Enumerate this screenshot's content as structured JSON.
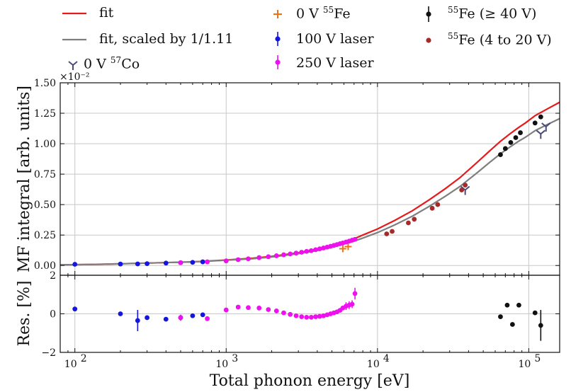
{
  "legend": {
    "fit": "fit",
    "fit_scaled": "fit, scaled by 1/1.11",
    "co57": "0 V",
    "co57_iso": "57",
    "co57_el": "Co",
    "fe55_0v": "0 V",
    "fe55_0v_iso": "55",
    "fe55_0v_el": "Fe",
    "laser100": "100 V laser",
    "laser250": "250 V laser",
    "fe55_high_iso": "55",
    "fe55_high": "Fe (≥ 40 V)",
    "fe55_low_iso": "55",
    "fe55_low": "Fe (4 to 20 V)"
  },
  "chart_data": [
    {
      "type": "scatter",
      "title": "",
      "xlabel": "Total phonon energy [eV]",
      "ylabel": "MF integral [arb. units]",
      "xscale": "log",
      "xlim": [
        80,
        160000
      ],
      "ylim": [
        -0.0008,
        0.015
      ],
      "y_offset_label": "×10⁻²",
      "xticks": [
        {
          "value": 100,
          "label": "10",
          "exp": "2"
        },
        {
          "value": 1000,
          "label": "10",
          "exp": "3"
        },
        {
          "value": 10000,
          "label": "10",
          "exp": "4"
        },
        {
          "value": 100000,
          "label": "10",
          "exp": "5"
        }
      ],
      "yticks": [
        {
          "value": 0.0,
          "label": "0.00"
        },
        {
          "value": 0.0025,
          "label": "0.25"
        },
        {
          "value": 0.005,
          "label": "0.50"
        },
        {
          "value": 0.0075,
          "label": "0.75"
        },
        {
          "value": 0.01,
          "label": "1.00"
        },
        {
          "value": 0.0125,
          "label": "1.25"
        },
        {
          "value": 0.015,
          "label": "1.50"
        }
      ],
      "grid": true,
      "curves": [
        {
          "name": "fit",
          "color": "#e41a1c",
          "x": [
            80,
            150,
            300,
            600,
            1000,
            1500,
            2000,
            3000,
            4000,
            5000,
            6000,
            7000,
            8000,
            10000,
            13000,
            17000,
            22000,
            28000,
            35000,
            45000,
            55000,
            65000,
            75000,
            85000,
            95000,
            110000,
            130000,
            160000
          ],
          "y": [
            5e-05,
            0.0001,
            0.0002,
            0.0003,
            0.00045,
            0.0006,
            0.00075,
            0.00105,
            0.00135,
            0.00165,
            0.00195,
            0.0022,
            0.0025,
            0.003,
            0.0037,
            0.0045,
            0.0054,
            0.0063,
            0.0072,
            0.0084,
            0.0094,
            0.0102,
            0.0108,
            0.0113,
            0.0117,
            0.0123,
            0.0128,
            0.0134
          ]
        },
        {
          "name": "fit, scaled by 1/1.11",
          "color": "#7f7f7f",
          "x": [
            80,
            150,
            300,
            600,
            1000,
            1500,
            2000,
            3000,
            4000,
            5000,
            6000,
            7000,
            8000,
            10000,
            13000,
            17000,
            22000,
            28000,
            35000,
            45000,
            55000,
            65000,
            75000,
            85000,
            95000,
            110000,
            130000,
            160000
          ],
          "y": [
            5e-05,
            0.0001,
            0.0002,
            0.0003,
            0.00043,
            0.00056,
            0.0007,
            0.00097,
            0.00123,
            0.0015,
            0.00176,
            0.002,
            0.00225,
            0.0027,
            0.00333,
            0.00405,
            0.00486,
            0.00567,
            0.00648,
            0.00756,
            0.00846,
            0.00918,
            0.00972,
            0.01017,
            0.01053,
            0.01107,
            0.01152,
            0.01206
          ]
        }
      ],
      "series": [
        {
          "name": "0 V 55Fe",
          "color": "#f0701a",
          "marker": "plus",
          "x": [
            5900,
            6400
          ],
          "y": [
            0.00138,
            0.00155
          ]
        },
        {
          "name": "100 V laser",
          "color": "#1515e0",
          "marker": "dot",
          "x": [
            100,
            200,
            260,
            300,
            400,
            500,
            600,
            700
          ],
          "y": [
            0.0001,
            0.00012,
            0.00013,
            0.00015,
            0.0002,
            0.00023,
            0.00026,
            0.0003
          ]
        },
        {
          "name": "250 V laser",
          "color": "#ee10ee",
          "marker": "dot",
          "x": [
            500,
            750,
            1000,
            1200,
            1400,
            1650,
            1900,
            2150,
            2400,
            2650,
            2900,
            3150,
            3400,
            3650,
            3900,
            4150,
            4400,
            4650,
            4900,
            5150,
            5400,
            5650,
            5900,
            6200,
            6500,
            6800,
            7100
          ],
          "y": [
            0.00023,
            0.0003,
            0.00038,
            0.00048,
            0.00055,
            0.00065,
            0.00072,
            0.0008,
            0.00088,
            0.00095,
            0.00102,
            0.00109,
            0.00116,
            0.00122,
            0.0013,
            0.00137,
            0.00144,
            0.00151,
            0.00158,
            0.00165,
            0.00172,
            0.00179,
            0.00185,
            0.00193,
            0.002,
            0.00208,
            0.00215
          ]
        },
        {
          "name": "0 V 57Co",
          "color": "#4a4a7a",
          "marker": "tri",
          "x": [
            38000,
            120000,
            130000
          ],
          "y": [
            0.0062,
            0.0108,
            0.0114
          ]
        },
        {
          "name": "55Fe (≥ 40 V)",
          "color": "#111111",
          "marker": "dot",
          "x": [
            65000,
            70000,
            76000,
            82000,
            88000,
            110000,
            120000
          ],
          "y": [
            0.0091,
            0.0096,
            0.0101,
            0.0105,
            0.0109,
            0.0117,
            0.0122
          ]
        },
        {
          "name": "55Fe (4 to 20 V)",
          "color": "#a52a2a",
          "marker": "dot",
          "x": [
            11500,
            12500,
            16000,
            17500,
            23000,
            25000,
            36000,
            38000
          ],
          "y": [
            0.0026,
            0.0028,
            0.0035,
            0.0038,
            0.0047,
            0.005,
            0.0062,
            0.0066
          ]
        }
      ]
    },
    {
      "type": "scatter",
      "title": "",
      "xlabel": "Total phonon energy [eV]",
      "ylabel": "Res.  [%]",
      "xscale": "log",
      "xlim": [
        80,
        160000
      ],
      "ylim": [
        -2,
        2
      ],
      "yticks": [
        {
          "value": -2,
          "label": "−2"
        },
        {
          "value": 0,
          "label": "0"
        },
        {
          "value": 2,
          "label": "2"
        }
      ],
      "grid": true,
      "series": [
        {
          "name": "100 V laser",
          "color": "#1515e0",
          "x": [
            100,
            200,
            260,
            300,
            400,
            500,
            600,
            700
          ],
          "y": [
            0.25,
            0.0,
            -0.35,
            -0.2,
            -0.28,
            -0.2,
            -0.1,
            -0.05
          ],
          "err": [
            0,
            0,
            0.55,
            0,
            0,
            0.15,
            0,
            0
          ]
        },
        {
          "name": "250 V laser",
          "color": "#ee10ee",
          "x": [
            500,
            750,
            1000,
            1200,
            1400,
            1650,
            1900,
            2150,
            2400,
            2650,
            2900,
            3150,
            3400,
            3650,
            3900,
            4150,
            4400,
            4650,
            4900,
            5150,
            5400,
            5650,
            5900,
            6200,
            6500,
            6800,
            7100
          ],
          "y": [
            -0.2,
            -0.25,
            0.2,
            0.35,
            0.32,
            0.3,
            0.22,
            0.15,
            0.05,
            -0.03,
            -0.1,
            -0.15,
            -0.18,
            -0.18,
            -0.15,
            -0.13,
            -0.1,
            -0.05,
            0.0,
            0.05,
            0.1,
            0.18,
            0.3,
            0.4,
            0.45,
            0.5,
            1.05
          ],
          "err": [
            0.15,
            0,
            0,
            0,
            0,
            0,
            0,
            0,
            0,
            0,
            0,
            0,
            0,
            0,
            0,
            0,
            0,
            0,
            0,
            0,
            0,
            0,
            0,
            0.2,
            0.2,
            0.2,
            0.3
          ]
        },
        {
          "name": "55Fe (≥ 40 V)",
          "color": "#111111",
          "x": [
            65000,
            72000,
            78000,
            86000,
            110000,
            120000
          ],
          "y": [
            -0.15,
            0.45,
            -0.55,
            0.45,
            0.05,
            -0.6
          ],
          "err": [
            0,
            0,
            0,
            0,
            0,
            0.8
          ]
        }
      ]
    }
  ]
}
